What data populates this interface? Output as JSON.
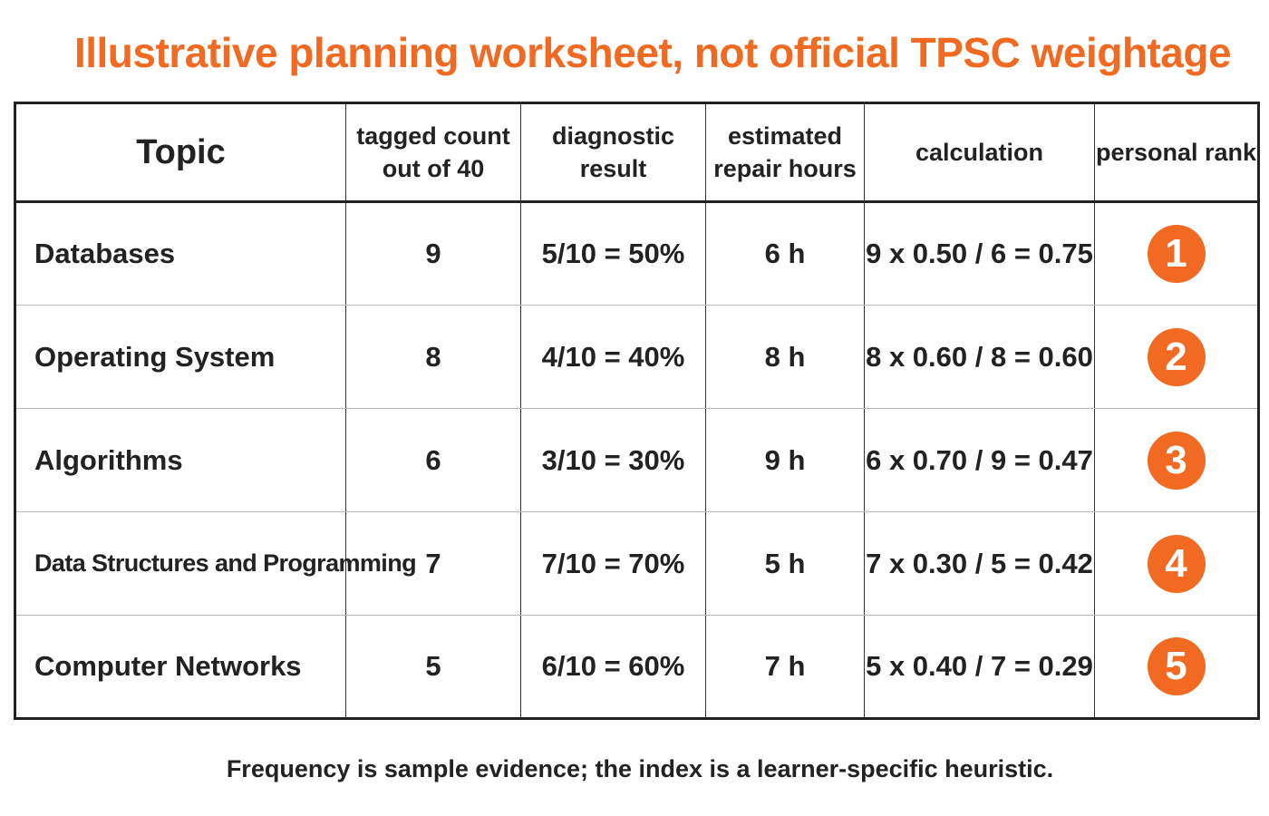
{
  "title": "Illustrative planning worksheet, not official TPSC weightage",
  "accent_color": "#f26a21",
  "table": {
    "headers": {
      "topic": "Topic",
      "tagged_count_line1": "tagged count",
      "tagged_count_line2": "out of 40",
      "diagnostic": "diagnostic result",
      "hours_line1": "estimated",
      "hours_line2": "repair hours",
      "calculation": "calculation",
      "rank": "personal rank"
    },
    "rows": [
      {
        "topic": "Databases",
        "tagged": "9",
        "diagnostic": "5/10 = 50%",
        "hours": "6 h",
        "calc": "9 x 0.50 / 6 = 0.75",
        "rank": "1"
      },
      {
        "topic": "Operating System",
        "tagged": "8",
        "diagnostic": "4/10 = 40%",
        "hours": "8 h",
        "calc": "8 x 0.60 / 8 = 0.60",
        "rank": "2"
      },
      {
        "topic": "Algorithms",
        "tagged": "6",
        "diagnostic": "3/10 = 30%",
        "hours": "9 h",
        "calc": "6 x 0.70 / 9 = 0.47",
        "rank": "3"
      },
      {
        "topic": "Data Structures and Programming",
        "tagged": "7",
        "diagnostic": "7/10 = 70%",
        "hours": "5 h",
        "calc": "7 x 0.30 / 5 = 0.42",
        "rank": "4"
      },
      {
        "topic": "Computer Networks",
        "tagged": "5",
        "diagnostic": "6/10 = 60%",
        "hours": "7 h",
        "calc": "5 x 0.40 / 7 = 0.29",
        "rank": "5"
      }
    ]
  },
  "footnote": "Frequency is sample evidence; the index is a learner-specific heuristic."
}
